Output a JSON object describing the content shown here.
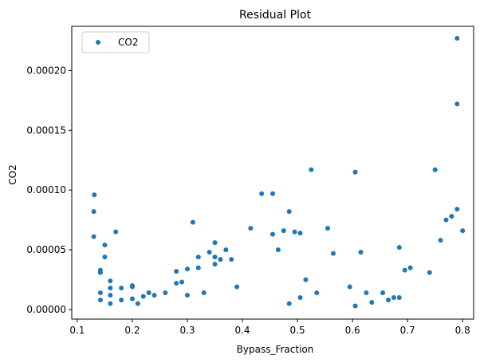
{
  "chart_data": {
    "type": "scatter",
    "title": "Residual Plot",
    "xlabel": "Bypass_Fraction",
    "ylabel": "CO2",
    "xlim": [
      0.09,
      0.82
    ],
    "ylim": [
      -8e-06,
      0.000237
    ],
    "xticks": [
      0.1,
      0.2,
      0.3,
      0.4,
      0.5,
      0.6,
      0.7,
      0.8
    ],
    "xtick_labels": [
      "0.1",
      "0.2",
      "0.3",
      "0.4",
      "0.5",
      "0.6",
      "0.7",
      "0.8"
    ],
    "yticks": [
      0,
      5e-05,
      0.0001,
      0.00015,
      0.0002
    ],
    "ytick_labels": [
      "0.00000",
      "0.00005",
      "0.00010",
      "0.00015",
      "0.00020"
    ],
    "grid": false,
    "legend_position": "upper-left",
    "series": [
      {
        "name": "CO2",
        "color": "#1f77b4",
        "points": [
          [
            0.131,
            9.6e-05
          ],
          [
            0.13,
            8.2e-05
          ],
          [
            0.13,
            6.1e-05
          ],
          [
            0.142,
            3.3e-05
          ],
          [
            0.142,
            3.1e-05
          ],
          [
            0.142,
            1.4e-05
          ],
          [
            0.142,
            8e-06
          ],
          [
            0.15,
            5.4e-05
          ],
          [
            0.15,
            4.4e-05
          ],
          [
            0.16,
            2.4e-05
          ],
          [
            0.16,
            1.8e-05
          ],
          [
            0.16,
            1.2e-05
          ],
          [
            0.16,
            5e-06
          ],
          [
            0.17,
            6.5e-05
          ],
          [
            0.18,
            1.8e-05
          ],
          [
            0.18,
            8e-06
          ],
          [
            0.2,
            2e-05
          ],
          [
            0.2,
            1.9e-05
          ],
          [
            0.2,
            9e-06
          ],
          [
            0.21,
            5e-06
          ],
          [
            0.22,
            1.1e-05
          ],
          [
            0.23,
            1.4e-05
          ],
          [
            0.24,
            1.2e-05
          ],
          [
            0.26,
            1.4e-05
          ],
          [
            0.28,
            3.2e-05
          ],
          [
            0.28,
            2.2e-05
          ],
          [
            0.29,
            2.3e-05
          ],
          [
            0.3,
            3.4e-05
          ],
          [
            0.3,
            1.2e-05
          ],
          [
            0.31,
            7.3e-05
          ],
          [
            0.32,
            4.4e-05
          ],
          [
            0.32,
            3.5e-05
          ],
          [
            0.33,
            1.4e-05
          ],
          [
            0.34,
            4.8e-05
          ],
          [
            0.35,
            5.6e-05
          ],
          [
            0.35,
            4.4e-05
          ],
          [
            0.35,
            3.8e-05
          ],
          [
            0.36,
            4.2e-05
          ],
          [
            0.37,
            5e-05
          ],
          [
            0.38,
            4.2e-05
          ],
          [
            0.39,
            1.9e-05
          ],
          [
            0.415,
            6.8e-05
          ],
          [
            0.435,
            9.7e-05
          ],
          [
            0.455,
            9.7e-05
          ],
          [
            0.455,
            6.3e-05
          ],
          [
            0.465,
            5e-05
          ],
          [
            0.475,
            6.6e-05
          ],
          [
            0.485,
            8.2e-05
          ],
          [
            0.485,
            5e-06
          ],
          [
            0.495,
            6.5e-05
          ],
          [
            0.505,
            6.4e-05
          ],
          [
            0.505,
            1e-05
          ],
          [
            0.515,
            2.5e-05
          ],
          [
            0.525,
            0.000117
          ],
          [
            0.535,
            1.4e-05
          ],
          [
            0.555,
            6.8e-05
          ],
          [
            0.565,
            4.7e-05
          ],
          [
            0.595,
            1.9e-05
          ],
          [
            0.605,
            0.000115
          ],
          [
            0.605,
            3e-06
          ],
          [
            0.615,
            4.8e-05
          ],
          [
            0.625,
            1.4e-05
          ],
          [
            0.635,
            6e-06
          ],
          [
            0.655,
            1.4e-05
          ],
          [
            0.665,
            8e-06
          ],
          [
            0.675,
            1e-05
          ],
          [
            0.685,
            5.2e-05
          ],
          [
            0.685,
            1e-05
          ],
          [
            0.695,
            3.3e-05
          ],
          [
            0.705,
            3.5e-05
          ],
          [
            0.74,
            3.1e-05
          ],
          [
            0.75,
            0.000117
          ],
          [
            0.76,
            5.8e-05
          ],
          [
            0.77,
            7.5e-05
          ],
          [
            0.78,
            7.8e-05
          ],
          [
            0.79,
            0.000227
          ],
          [
            0.79,
            0.000172
          ],
          [
            0.79,
            8.4e-05
          ],
          [
            0.8,
            6.6e-05
          ]
        ]
      }
    ]
  }
}
